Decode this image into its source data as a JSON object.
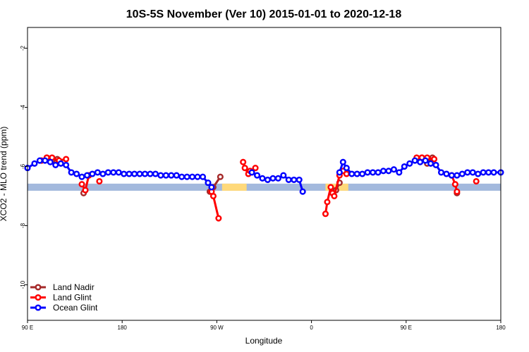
{
  "chart_data": {
    "type": "line",
    "title": "10S-5S November (Ver 10)   2015-01-01 to 2020-12-18",
    "xlabel": "Longitude",
    "ylabel": "XCO2 - MLO trend (ppm)",
    "xlim": [
      -90,
      180
    ],
    "ylim": [
      -11.2,
      -1.3
    ],
    "x_ticks": [
      {
        "value": -90,
        "label": "90 E"
      },
      {
        "value": -36,
        "label": "180"
      },
      {
        "value": 18,
        "label": "90 W"
      },
      {
        "value": 72,
        "label": "0"
      },
      {
        "value": 126,
        "label": "90 E"
      },
      {
        "value": 180,
        "label": "180"
      }
    ],
    "y_ticks": [
      {
        "value": -2,
        "label": "-2"
      },
      {
        "value": -4,
        "label": "-4"
      },
      {
        "value": -6,
        "label": "-6"
      },
      {
        "value": -8,
        "label": "-8"
      },
      {
        "value": -10,
        "label": "-10"
      }
    ],
    "grid": false,
    "legend_position": "bottom-left",
    "colors": {
      "land_nadir": "#a52a2a",
      "land_glint": "#ff0000",
      "ocean_glint": "#0000ff",
      "ocean_band": "#a3b9dd",
      "land_band": "#ffd97a"
    },
    "land_segments": [
      [
        21,
        35
      ],
      [
        80,
        93
      ]
    ],
    "series": [
      {
        "name": "Land Nadir",
        "key": "land_nadir",
        "segments": [
          [
            [
              -79,
              -5.7
            ],
            [
              -76,
              -5.8
            ],
            [
              -73,
              -5.75
            ]
          ],
          [
            [
              -58,
              -6.9
            ]
          ],
          [
            [
              14,
              -6.85
            ],
            [
              16,
              -6.7
            ],
            [
              20,
              -6.35
            ]
          ],
          [
            [
              86,
              -6.8
            ],
            [
              88,
              -6.55
            ]
          ],
          [
            [
              135,
              -5.7
            ],
            [
              138,
              -5.9
            ],
            [
              141,
              -5.7
            ]
          ],
          [
            [
              155,
              -6.9
            ]
          ]
        ]
      },
      {
        "name": "Land Glint",
        "key": "land_glint",
        "segments": [
          [
            [
              -82,
              -5.8
            ],
            [
              -79,
              -5.7
            ],
            [
              -76,
              -5.7
            ],
            [
              -72,
              -5.8
            ],
            [
              -68,
              -5.75
            ]
          ],
          [
            [
              -59,
              -6.6
            ],
            [
              -57,
              -6.8
            ],
            [
              -55,
              -6.3
            ]
          ],
          [
            [
              -49,
              -6.5
            ]
          ],
          [
            [
              15,
              -6.85
            ],
            [
              16,
              -7.0
            ],
            [
              19,
              -7.75
            ]
          ],
          [
            [
              33,
              -5.85
            ],
            [
              34,
              -6.05
            ],
            [
              36,
              -6.25
            ],
            [
              37,
              -6.15
            ],
            [
              40,
              -6.05
            ]
          ],
          [
            [
              80,
              -7.6
            ],
            [
              81,
              -7.2
            ],
            [
              83,
              -6.7
            ],
            [
              84,
              -6.9
            ],
            [
              85,
              -7.0
            ],
            [
              88,
              -6.3
            ],
            [
              90,
              -6.15
            ],
            [
              92,
              -6.25
            ]
          ],
          [
            [
              132,
              -5.7
            ],
            [
              135,
              -5.7
            ],
            [
              138,
              -5.7
            ],
            [
              142,
              -5.75
            ]
          ],
          [
            [
              152,
              -6.3
            ],
            [
              154,
              -6.6
            ],
            [
              155,
              -6.85
            ]
          ],
          [
            [
              166,
              -6.5
            ]
          ]
        ]
      },
      {
        "name": "Ocean Glint",
        "key": "ocean_glint",
        "segments": [
          [
            [
              -90,
              -6.05
            ],
            [
              -86,
              -5.9
            ],
            [
              -83,
              -5.8
            ],
            [
              -80,
              -5.8
            ],
            [
              -77,
              -5.85
            ],
            [
              -74,
              -5.95
            ],
            [
              -71,
              -5.9
            ],
            [
              -68,
              -5.95
            ],
            [
              -65,
              -6.2
            ],
            [
              -62,
              -6.25
            ],
            [
              -59,
              -6.35
            ],
            [
              -56,
              -6.3
            ],
            [
              -53,
              -6.25
            ],
            [
              -50,
              -6.2
            ],
            [
              -47,
              -6.25
            ],
            [
              -44,
              -6.2
            ],
            [
              -41,
              -6.2
            ],
            [
              -38,
              -6.2
            ],
            [
              -35,
              -6.25
            ],
            [
              -32,
              -6.25
            ],
            [
              -29,
              -6.25
            ],
            [
              -26,
              -6.25
            ],
            [
              -23,
              -6.25
            ],
            [
              -20,
              -6.25
            ],
            [
              -17,
              -6.25
            ],
            [
              -14,
              -6.3
            ],
            [
              -11,
              -6.3
            ],
            [
              -8,
              -6.3
            ],
            [
              -5,
              -6.3
            ],
            [
              -2,
              -6.35
            ],
            [
              1,
              -6.35
            ],
            [
              4,
              -6.35
            ],
            [
              7,
              -6.35
            ],
            [
              10,
              -6.35
            ],
            [
              13,
              -6.55
            ],
            [
              15,
              -6.7
            ]
          ],
          [
            [
              38,
              -6.2
            ],
            [
              41,
              -6.3
            ],
            [
              44,
              -6.4
            ],
            [
              47,
              -6.45
            ],
            [
              50,
              -6.4
            ],
            [
              53,
              -6.4
            ],
            [
              56,
              -6.3
            ],
            [
              59,
              -6.45
            ],
            [
              62,
              -6.45
            ],
            [
              65,
              -6.45
            ],
            [
              67,
              -6.85
            ]
          ],
          [
            [
              88,
              -6.2
            ],
            [
              90,
              -5.85
            ],
            [
              92,
              -6.05
            ],
            [
              95,
              -6.25
            ],
            [
              98,
              -6.25
            ],
            [
              101,
              -6.25
            ],
            [
              104,
              -6.2
            ],
            [
              107,
              -6.2
            ],
            [
              110,
              -6.2
            ],
            [
              113,
              -6.15
            ],
            [
              116,
              -6.15
            ],
            [
              119,
              -6.1
            ],
            [
              122,
              -6.2
            ],
            [
              125,
              -6.0
            ],
            [
              128,
              -5.9
            ],
            [
              131,
              -5.8
            ],
            [
              134,
              -5.85
            ],
            [
              137,
              -5.8
            ],
            [
              140,
              -5.9
            ],
            [
              143,
              -5.95
            ],
            [
              146,
              -6.2
            ],
            [
              149,
              -6.25
            ],
            [
              152,
              -6.3
            ],
            [
              155,
              -6.3
            ],
            [
              158,
              -6.25
            ],
            [
              161,
              -6.2
            ],
            [
              164,
              -6.2
            ],
            [
              167,
              -6.25
            ],
            [
              170,
              -6.2
            ],
            [
              173,
              -6.2
            ],
            [
              176,
              -6.2
            ],
            [
              180,
              -6.2
            ]
          ]
        ]
      }
    ]
  }
}
